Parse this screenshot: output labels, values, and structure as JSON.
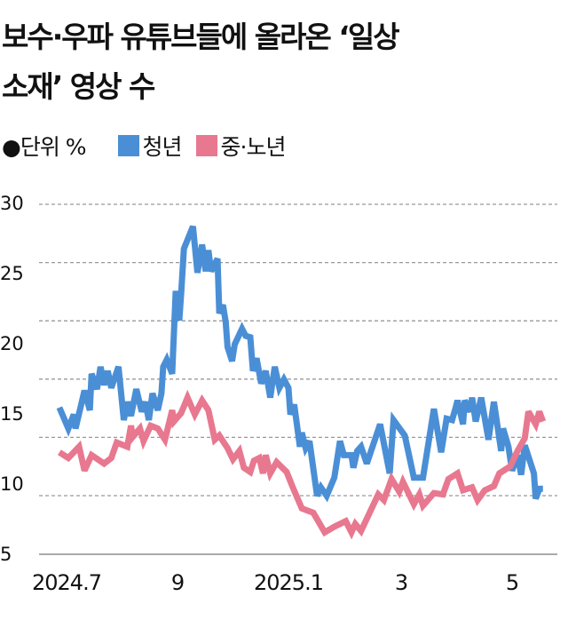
{
  "title_line1": "보수·우파 유튜브들에 올라온 ‘일상",
  "title_line2": "소재’ 영상 수",
  "legend": {
    "unit": "●단위 %",
    "items": [
      {
        "label": "청년",
        "color": "#4a8fd6"
      },
      {
        "label": "중·노년",
        "color": "#e8788f"
      }
    ]
  },
  "chart_data": {
    "type": "line",
    "ylabel": "%",
    "ylim": [
      5,
      30
    ],
    "yticks": [
      "30",
      "25",
      "20",
      "15",
      "10",
      "5"
    ],
    "xticks": [
      {
        "label": "2024.7",
        "date": "2024-07-01"
      },
      {
        "label": "9",
        "date": "2024-09-01"
      },
      {
        "label": "2025.1",
        "date": "2025-01-01"
      },
      {
        "label": "3",
        "date": "2025-03-01"
      },
      {
        "label": "5",
        "date": "2025-05-01"
      }
    ],
    "grid": true,
    "series": [
      {
        "name": "청년",
        "color": "#4a8fd6",
        "points": [
          [
            "2024-06-27",
            15.4
          ],
          [
            "2024-07-02",
            13.9
          ],
          [
            "2024-07-05",
            14.9
          ],
          [
            "2024-07-06",
            13.9
          ],
          [
            "2024-07-11",
            16.6
          ],
          [
            "2024-07-14",
            15.2
          ],
          [
            "2024-07-15",
            17.8
          ],
          [
            "2024-07-18",
            16.7
          ],
          [
            "2024-07-20",
            18.3
          ],
          [
            "2024-07-22",
            17.0
          ],
          [
            "2024-07-24",
            18.0
          ],
          [
            "2024-07-26",
            16.8
          ],
          [
            "2024-07-30",
            18.3
          ],
          [
            "2024-08-02",
            14.5
          ],
          [
            "2024-08-04",
            15.8
          ],
          [
            "2024-08-06",
            14.8
          ],
          [
            "2024-08-09",
            16.7
          ],
          [
            "2024-08-12",
            15.1
          ],
          [
            "2024-08-14",
            15.8
          ],
          [
            "2024-08-16",
            14.5
          ],
          [
            "2024-08-18",
            16.4
          ],
          [
            "2024-08-21",
            15.2
          ],
          [
            "2024-08-23",
            16.4
          ],
          [
            "2024-08-24",
            18.3
          ],
          [
            "2024-08-26",
            18.8
          ],
          [
            "2024-08-29",
            17.8
          ],
          [
            "2024-08-31",
            23.7
          ],
          [
            "2024-09-03",
            21.6
          ],
          [
            "2024-09-05",
            23.5
          ],
          [
            "2024-09-08",
            26.7
          ],
          [
            "2024-09-18",
            28.3
          ],
          [
            "2024-09-23",
            25.0
          ],
          [
            "2024-09-28",
            27.0
          ],
          [
            "2024-10-02",
            25.1
          ],
          [
            "2024-10-05",
            26.6
          ],
          [
            "2024-10-08",
            25.1
          ],
          [
            "2024-10-15",
            26.0
          ],
          [
            "2024-10-17",
            22.1
          ],
          [
            "2024-10-21",
            22.7
          ],
          [
            "2024-10-24",
            21.5
          ],
          [
            "2024-10-26",
            19.7
          ],
          [
            "2024-10-31",
            18.7
          ],
          [
            "2024-11-03",
            19.9
          ],
          [
            "2024-11-11",
            21.0
          ],
          [
            "2024-11-15",
            20.5
          ],
          [
            "2024-11-20",
            20.4
          ],
          [
            "2024-11-23",
            18.0
          ],
          [
            "2024-11-27",
            18.9
          ],
          [
            "2024-12-02",
            17.1
          ],
          [
            "2024-12-07",
            18.0
          ],
          [
            "2024-12-12",
            16.1
          ],
          [
            "2024-12-17",
            18.3
          ],
          [
            "2024-12-22",
            16.8
          ],
          [
            "2024-12-27",
            17.4
          ],
          [
            "2025-01-01",
            16.8
          ],
          [
            "2025-01-02",
            14.9
          ],
          [
            "2025-01-04",
            15.6
          ],
          [
            "2025-01-07",
            12.6
          ],
          [
            "2025-01-08",
            13.6
          ],
          [
            "2025-01-10",
            12.5
          ],
          [
            "2025-01-12",
            13.0
          ],
          [
            "2025-01-16",
            9.1
          ],
          [
            "2025-01-18",
            9.7
          ],
          [
            "2025-01-21",
            9.1
          ],
          [
            "2025-01-25",
            10.4
          ],
          [
            "2025-01-28",
            13.0
          ],
          [
            "2025-01-30",
            12.0
          ],
          [
            "2025-02-03",
            12.0
          ],
          [
            "2025-02-04",
            11.1
          ],
          [
            "2025-02-06",
            12.3
          ],
          [
            "2025-02-08",
            12.6
          ],
          [
            "2025-02-11",
            11.4
          ],
          [
            "2025-02-18",
            14.2
          ],
          [
            "2025-02-23",
            10.7
          ],
          [
            "2025-02-25",
            14.5
          ],
          [
            "2025-03-03",
            13.4
          ],
          [
            "2025-03-08",
            10.4
          ],
          [
            "2025-03-13",
            10.4
          ],
          [
            "2025-03-19",
            15.3
          ],
          [
            "2025-03-23",
            12.2
          ],
          [
            "2025-03-26",
            14.6
          ],
          [
            "2025-03-29",
            14.5
          ],
          [
            "2025-03-31",
            15.4
          ],
          [
            "2025-04-01",
            15.9
          ],
          [
            "2025-04-04",
            14.2
          ],
          [
            "2025-04-05",
            15.9
          ],
          [
            "2025-04-08",
            15.1
          ],
          [
            "2025-04-09",
            16.1
          ],
          [
            "2025-04-11",
            14.4
          ],
          [
            "2025-04-14",
            16.1
          ],
          [
            "2025-04-18",
            13.1
          ],
          [
            "2025-04-21",
            15.8
          ],
          [
            "2025-04-25",
            12.3
          ],
          [
            "2025-04-26",
            13.9
          ],
          [
            "2025-04-29",
            12.6
          ],
          [
            "2025-05-01",
            10.9
          ],
          [
            "2025-05-04",
            12.0
          ],
          [
            "2025-05-06",
            10.6
          ],
          [
            "2025-05-08",
            12.7
          ],
          [
            "2025-05-13",
            10.7
          ],
          [
            "2025-05-14",
            8.9
          ],
          [
            "2025-05-16",
            9.6
          ],
          [
            "2025-05-18",
            9.6
          ]
        ]
      },
      {
        "name": "중·노년",
        "color": "#e8788f",
        "points": [
          [
            "2024-06-27",
            12.2
          ],
          [
            "2024-07-02",
            11.8
          ],
          [
            "2024-07-08",
            12.6
          ],
          [
            "2024-07-11",
            10.9
          ],
          [
            "2024-07-15",
            12.0
          ],
          [
            "2024-07-22",
            11.4
          ],
          [
            "2024-07-26",
            11.8
          ],
          [
            "2024-07-29",
            12.9
          ],
          [
            "2024-08-04",
            12.6
          ],
          [
            "2024-08-06",
            14.1
          ],
          [
            "2024-08-07",
            13.3
          ],
          [
            "2024-08-11",
            13.9
          ],
          [
            "2024-08-13",
            13.0
          ],
          [
            "2024-08-17",
            14.1
          ],
          [
            "2024-08-21",
            13.9
          ],
          [
            "2024-08-25",
            13.1
          ],
          [
            "2024-08-29",
            15.2
          ],
          [
            "2024-08-30",
            14.4
          ],
          [
            "2024-09-05",
            15.0
          ],
          [
            "2024-09-12",
            16.1
          ],
          [
            "2024-09-20",
            14.9
          ],
          [
            "2024-09-28",
            15.9
          ],
          [
            "2024-10-05",
            15.2
          ],
          [
            "2024-10-12",
            13.1
          ],
          [
            "2024-10-17",
            13.4
          ],
          [
            "2024-10-26",
            12.5
          ],
          [
            "2024-11-01",
            11.7
          ],
          [
            "2024-11-08",
            12.3
          ],
          [
            "2024-11-13",
            11.1
          ],
          [
            "2024-11-20",
            10.8
          ],
          [
            "2024-11-24",
            11.6
          ],
          [
            "2024-11-30",
            11.8
          ],
          [
            "2024-12-04",
            10.7
          ],
          [
            "2024-12-07",
            12.0
          ],
          [
            "2024-12-12",
            10.7
          ],
          [
            "2024-12-19",
            11.5
          ],
          [
            "2024-12-30",
            10.8
          ],
          [
            "2025-01-03",
            9.8
          ],
          [
            "2025-01-08",
            8.2
          ],
          [
            "2025-01-14",
            7.9
          ],
          [
            "2025-01-20",
            6.5
          ],
          [
            "2025-01-25",
            6.9
          ],
          [
            "2025-01-31",
            7.3
          ],
          [
            "2025-02-03",
            6.5
          ],
          [
            "2025-02-05",
            7.1
          ],
          [
            "2025-02-08",
            6.6
          ],
          [
            "2025-02-17",
            9.2
          ],
          [
            "2025-02-20",
            8.8
          ],
          [
            "2025-02-24",
            10.3
          ],
          [
            "2025-02-28",
            9.4
          ],
          [
            "2025-03-02",
            10.1
          ],
          [
            "2025-03-08",
            8.5
          ],
          [
            "2025-03-11",
            9.2
          ],
          [
            "2025-03-13",
            8.4
          ],
          [
            "2025-03-19",
            9.3
          ],
          [
            "2025-03-24",
            9.2
          ],
          [
            "2025-03-27",
            10.3
          ],
          [
            "2025-04-01",
            10.7
          ],
          [
            "2025-04-04",
            9.5
          ],
          [
            "2025-04-09",
            9.7
          ],
          [
            "2025-04-12",
            8.8
          ],
          [
            "2025-04-16",
            9.5
          ],
          [
            "2025-04-21",
            9.8
          ],
          [
            "2025-04-24",
            10.7
          ],
          [
            "2025-04-30",
            11.2
          ],
          [
            "2025-05-04",
            12.3
          ],
          [
            "2025-05-08",
            13.2
          ],
          [
            "2025-05-10",
            15.1
          ],
          [
            "2025-05-14",
            14.2
          ],
          [
            "2025-05-16",
            15.1
          ],
          [
            "2025-05-18",
            14.4
          ]
        ]
      }
    ]
  }
}
